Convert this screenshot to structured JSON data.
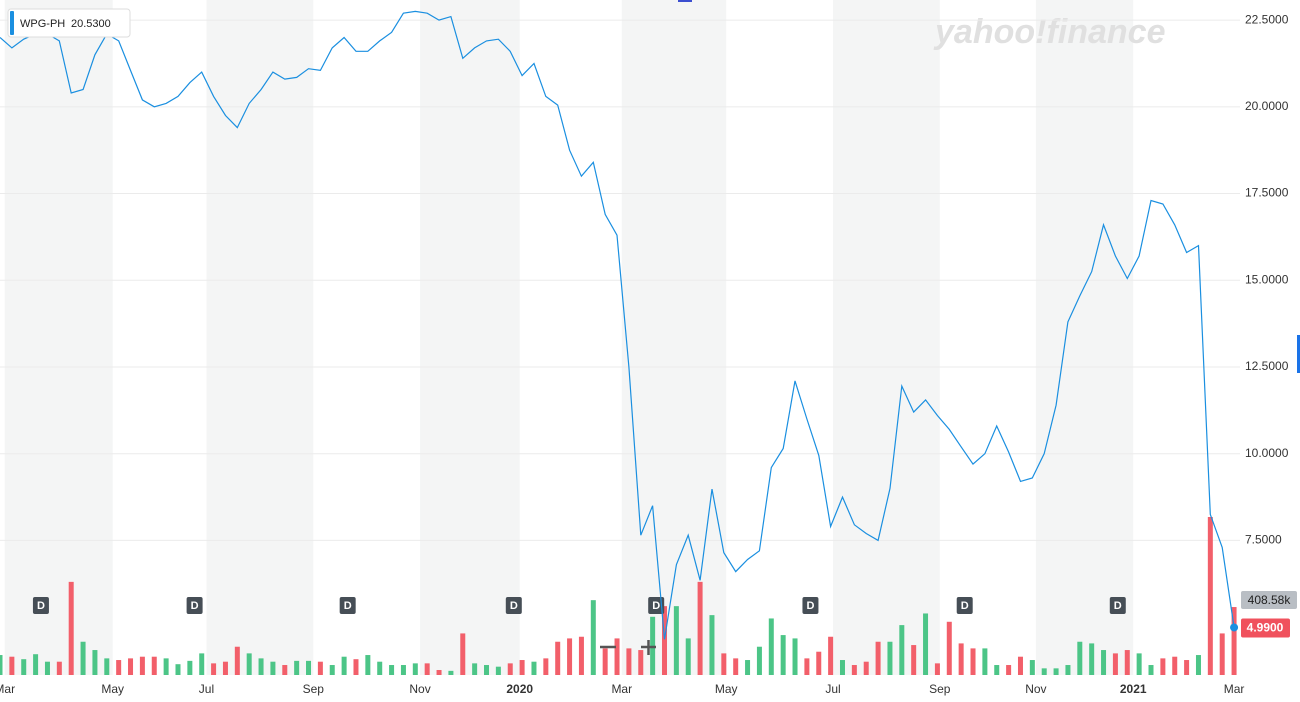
{
  "chart_data": {
    "type": "line",
    "watermark": "yahoo!finance",
    "series": [
      {
        "name": "WPG-PH",
        "color": "#1a8fe0",
        "hover_label": "20.5300",
        "last_label": "4.9900",
        "last_color": "#f0515d",
        "values": [
          22.0,
          21.7,
          21.95,
          22.1,
          22.1,
          21.9,
          20.4,
          20.5,
          21.5,
          22.1,
          21.9,
          21.05,
          20.2,
          20.0,
          20.1,
          20.3,
          20.7,
          21.0,
          20.3,
          19.75,
          19.4,
          20.1,
          20.5,
          21.0,
          20.8,
          20.85,
          21.1,
          21.05,
          21.7,
          22.0,
          21.6,
          21.6,
          21.9,
          22.15,
          22.7,
          22.75,
          22.7,
          22.5,
          22.6,
          21.4,
          21.7,
          21.9,
          21.95,
          21.6,
          20.9,
          21.25,
          20.3,
          20.05,
          18.75,
          18.0,
          18.4,
          16.9,
          16.3,
          12.5,
          7.65,
          8.5,
          4.65,
          6.8,
          7.65,
          6.35,
          8.98,
          7.15,
          6.6,
          6.95,
          7.2,
          9.6,
          10.15,
          12.1,
          11.0,
          9.95,
          7.9,
          8.75,
          7.95,
          7.7,
          7.5,
          9.0,
          11.95,
          11.2,
          11.55,
          11.1,
          10.7,
          10.2,
          9.7,
          10.0,
          10.8,
          10.05,
          9.2,
          9.3,
          10.0,
          11.4,
          13.8,
          14.55,
          15.25,
          16.6,
          15.7,
          15.05,
          15.7,
          17.3,
          17.2,
          16.6,
          15.8,
          16.0,
          8.25,
          7.3,
          4.99
        ]
      }
    ],
    "volume": {
      "up_color": "#4cc587",
      "down_color": "#f25f6a",
      "last_label": "408.58k",
      "values": [
        120,
        110,
        95,
        125,
        80,
        80,
        560,
        200,
        150,
        100,
        90,
        100,
        110,
        110,
        100,
        65,
        85,
        130,
        70,
        80,
        170,
        130,
        100,
        80,
        60,
        85,
        85,
        80,
        60,
        110,
        95,
        120,
        80,
        60,
        60,
        70,
        70,
        30,
        25,
        250,
        70,
        60,
        50,
        70,
        90,
        80,
        100,
        200,
        220,
        230,
        450,
        160,
        220,
        160,
        150,
        350,
        414,
        414,
        220,
        560,
        360,
        130,
        100,
        90,
        170,
        340,
        240,
        220,
        100,
        140,
        230,
        90,
        60,
        80,
        200,
        200,
        300,
        180,
        370,
        70,
        320,
        190,
        160,
        160,
        60,
        60,
        110,
        90,
        40,
        40,
        60,
        200,
        190,
        150,
        130,
        150,
        130,
        60,
        100,
        110,
        90,
        120,
        950,
        250,
        408.58
      ]
    },
    "dividend_markers": [
      {
        "x": 3.45,
        "label": "D"
      },
      {
        "x": 16.4,
        "label": "D"
      },
      {
        "x": 29.3,
        "label": "D"
      },
      {
        "x": 43.3,
        "label": "D"
      },
      {
        "x": 55.3,
        "label": "D"
      },
      {
        "x": 68.3,
        "label": "D"
      },
      {
        "x": 81.3,
        "label": "D"
      },
      {
        "x": 94.2,
        "label": "D"
      }
    ],
    "xlim": [
      0,
      104.5
    ],
    "xticks": [
      {
        "value": 0.4,
        "label": "Mar"
      },
      {
        "value": 9.5,
        "label": "May"
      },
      {
        "value": 17.4,
        "label": "Jul"
      },
      {
        "value": 26.4,
        "label": "Sep"
      },
      {
        "value": 35.4,
        "label": "Nov"
      },
      {
        "value": 43.8,
        "label": "2020"
      },
      {
        "value": 52.4,
        "label": "Mar"
      },
      {
        "value": 61.2,
        "label": "May"
      },
      {
        "value": 70.2,
        "label": "Jul"
      },
      {
        "value": 79.2,
        "label": "Sep"
      },
      {
        "value": 87.3,
        "label": "Nov"
      },
      {
        "value": 95.5,
        "label": "2021"
      },
      {
        "value": 104,
        "label": "Mar"
      }
    ],
    "ylim": [
      3.62,
      23.08
    ],
    "yticks": [
      {
        "value": 7.5,
        "label": "7.5000"
      },
      {
        "value": 10,
        "label": "10.0000"
      },
      {
        "value": 12.5,
        "label": "12.5000"
      },
      {
        "value": 15,
        "label": "15.0000"
      },
      {
        "value": 17.5,
        "label": "17.5000"
      },
      {
        "value": 20,
        "label": "20.0000"
      },
      {
        "value": 22.5,
        "label": "22.5000"
      }
    ],
    "grid": true,
    "shaded_bands": true
  }
}
